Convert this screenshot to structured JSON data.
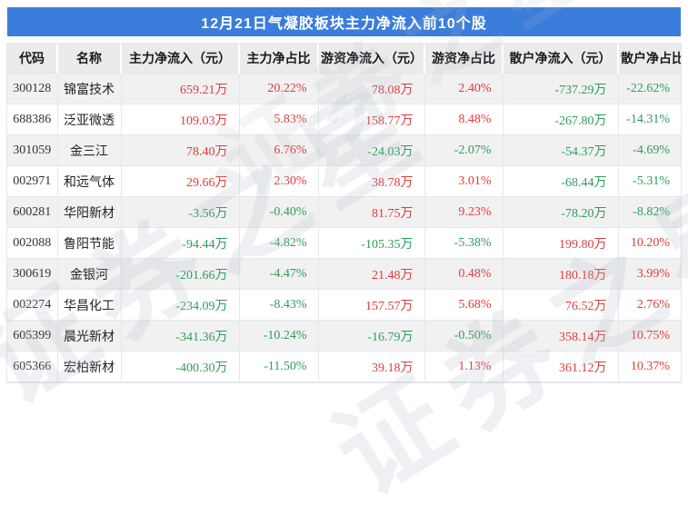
{
  "chart_data": {
    "type": "table",
    "title": "12月21日气凝胶板块主力净流入前10个股",
    "columns": [
      "代码",
      "名称",
      "主力净流入（元）",
      "主力净占比",
      "游资净流入（元）",
      "游资净占比",
      "散户净流入（元）",
      "散户净占比"
    ],
    "rows": [
      [
        "300128",
        "锦富技术",
        "659.21万",
        "20.22%",
        "78.08万",
        "2.40%",
        "-737.29万",
        "-22.62%"
      ],
      [
        "688386",
        "泛亚微透",
        "109.03万",
        "5.83%",
        "158.77万",
        "8.48%",
        "-267.80万",
        "-14.31%"
      ],
      [
        "301059",
        "金三江",
        "78.40万",
        "6.76%",
        "-24.03万",
        "-2.07%",
        "-54.37万",
        "-4.69%"
      ],
      [
        "002971",
        "和远气体",
        "29.66万",
        "2.30%",
        "38.78万",
        "3.01%",
        "-68.44万",
        "-5.31%"
      ],
      [
        "600281",
        "华阳新材",
        "-3.56万",
        "-0.40%",
        "81.75万",
        "9.23%",
        "-78.20万",
        "-8.82%"
      ],
      [
        "002088",
        "鲁阳节能",
        "-94.44万",
        "-4.82%",
        "-105.35万",
        "-5.38%",
        "199.80万",
        "10.20%"
      ],
      [
        "300619",
        "金银河",
        "-201.66万",
        "-4.47%",
        "21.48万",
        "0.48%",
        "180.18万",
        "3.99%"
      ],
      [
        "002274",
        "华昌化工",
        "-234.09万",
        "-8.43%",
        "157.57万",
        "5.68%",
        "76.52万",
        "2.76%"
      ],
      [
        "605399",
        "晨光新材",
        "-341.36万",
        "-10.24%",
        "-16.79万",
        "-0.50%",
        "358.14万",
        "10.75%"
      ],
      [
        "605366",
        "宏柏新材",
        "-400.30万",
        "-11.50%",
        "39.18万",
        "1.13%",
        "361.12万",
        "10.37%"
      ]
    ],
    "legend": "red = positive (inflow), green = negative (outflow)"
  },
  "colors": {
    "title_bar_blue": "#3b7ddb",
    "positive_red": "#e03c3c",
    "negative_green": "#2e9d5c",
    "header_bg": "#ebebeb",
    "alt_row_bg": "#f1f1f1"
  },
  "watermark": {
    "text": "证券之星"
  }
}
